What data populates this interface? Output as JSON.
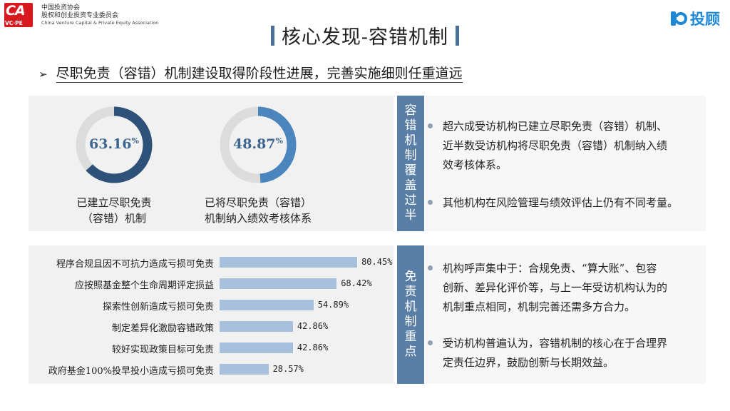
{
  "header": {
    "logo_left_main": "CA",
    "logo_left_sub": "VC·PE",
    "org_line1": "中国投资协会",
    "org_line2": "股权和创业投资专业委员会",
    "org_line3": "China Venture Capital & Private Equity Association",
    "logo_right_text": "投顾",
    "title": "核心发现-容错机制"
  },
  "subtitle": {
    "arrow": "➢",
    "text": "尽职免责（容错）机制建设取得阶段性进展，完善实施细则任重道远"
  },
  "donuts": [
    {
      "value": "63.16",
      "pct": "%",
      "fraction": 0.6316,
      "label_line1": "已建立尽职免责",
      "label_line2": "（容错）机制",
      "color": "#2e5179"
    },
    {
      "value": "48.87",
      "pct": "%",
      "fraction": 0.4887,
      "label_line1": "已将尽职免责（容错）",
      "label_line2": "机制纳入绩效考核体系",
      "color": "#4a86bd"
    }
  ],
  "band_top": {
    "chars": [
      "容",
      "错",
      "机",
      "制",
      "覆",
      "盖",
      "过",
      "半"
    ]
  },
  "band_bottom": {
    "chars": [
      "免",
      "责",
      "机",
      "制",
      "重",
      "点"
    ]
  },
  "bullets_top": [
    {
      "lines": [
        "超六成受访机构已建立尽职免责（容错）机制、",
        "近半数受访机构将尽职免责（容错）机制纳入绩",
        "效考核体系。"
      ]
    },
    {
      "lines": [
        "其他机构在风险管理与绩效评估上仍有不同考量。"
      ]
    }
  ],
  "bullets_bottom": [
    {
      "lines": [
        "机构呼声集中于：合规免责、“算大账”、包容",
        "创新、差异化评价等，与上一年受访机构认为的",
        "机制重点相同，机制完善还需多方合力。"
      ]
    },
    {
      "lines": [
        "受访机构普遍认为，容错机制的核心在于合理界",
        "定责任边界，鼓励创新与长期效益。"
      ]
    }
  ],
  "chart_data": {
    "type": "bar",
    "orientation": "horizontal",
    "categories": [
      "程序合规且因不可抗力造成亏损可免责",
      "应按照基金整个生命周期评定损益",
      "探索性创新造成亏损可免责",
      "制定差异化激励容错政策",
      "较好实现政策目标可免责",
      "政府基金100%投早投小造成亏损可免责"
    ],
    "values": [
      80.45,
      68.42,
      54.89,
      42.86,
      42.86,
      28.57
    ],
    "value_labels": [
      "80.45%",
      "68.42%",
      "54.89%",
      "42.86%",
      "42.86%",
      "28.57%"
    ],
    "bar_color": "#a7c1dd",
    "xlim": [
      0,
      100
    ],
    "grid": false
  }
}
